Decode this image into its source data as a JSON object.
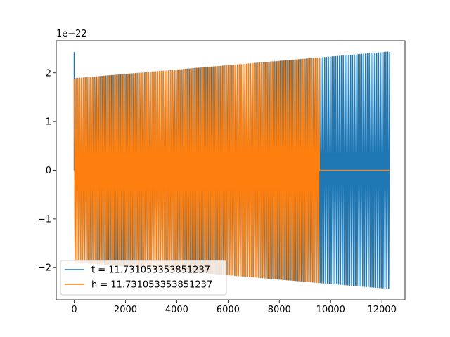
{
  "chart_data": {
    "type": "line",
    "title": "",
    "xlabel": "",
    "ylabel": "",
    "y_scale_label": "1e−22",
    "xlim": [
      -700,
      12900
    ],
    "ylim": [
      -2.66,
      2.66
    ],
    "x_ticks": [
      0,
      2000,
      4000,
      6000,
      8000,
      10000,
      12000
    ],
    "x_tick_labels": [
      "0",
      "2000",
      "4000",
      "6000",
      "8000",
      "10000",
      "12000"
    ],
    "y_ticks": [
      -2,
      -1,
      0,
      1,
      2
    ],
    "y_tick_labels": [
      "−2",
      "−1",
      "0",
      "1",
      "2"
    ],
    "grid": false,
    "legend_position": "lower-left",
    "series": [
      {
        "name": "t = 11.731053353851237",
        "color": "#1f77b4",
        "shape": "oscillation",
        "x_start": 0,
        "x_end": 12300,
        "initial_spike": 2.42,
        "amplitude_start": 1.88,
        "amplitude_end": 2.43,
        "cycles": 340
      },
      {
        "name": "h = 11.731053353851237",
        "color": "#ff7f0e",
        "shape": "oscillation_then_flat",
        "x_start": 0,
        "x_cut": 9560,
        "x_end": 12300,
        "amplitude_start": 1.88,
        "amplitude_end": 2.43,
        "flat_value": 0,
        "cycles": 270
      }
    ]
  }
}
